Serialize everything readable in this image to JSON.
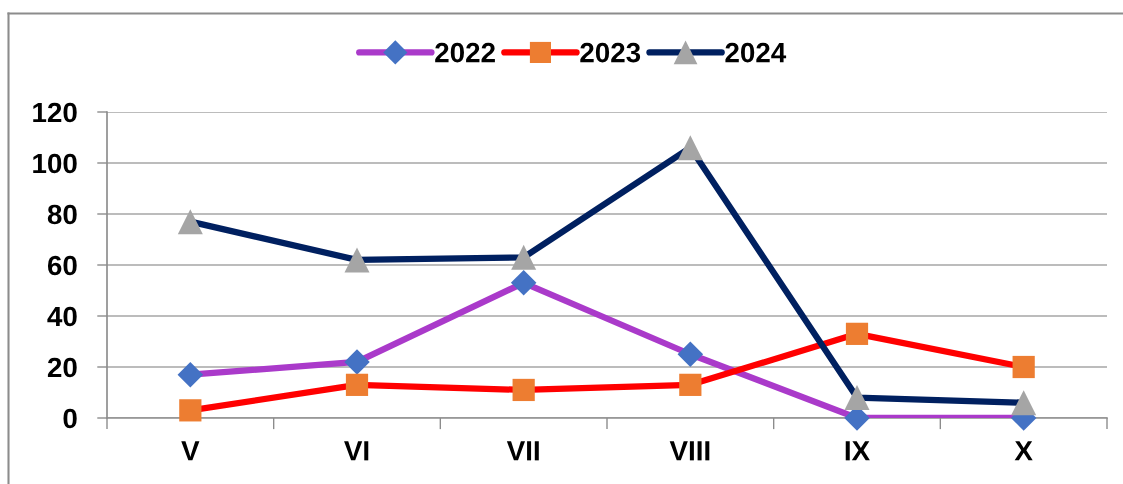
{
  "chart_data": {
    "type": "line",
    "categories": [
      "V",
      "VI",
      "VII",
      "VIII",
      "IX",
      "X"
    ],
    "ylim": [
      0,
      120
    ],
    "yticks": [
      0,
      20,
      40,
      60,
      80,
      100,
      120
    ],
    "grid": "y",
    "legend": "top",
    "line_style": "solid",
    "series": [
      {
        "name": "2022",
        "color": "#aa3aca",
        "marker": "diamond",
        "colors": [
          "#4472c4",
          "#4472c4",
          "#4472c4",
          "#4472c4",
          "#4472c4",
          "#4472c4"
        ],
        "values": [
          17,
          22,
          53,
          25,
          0,
          0
        ]
      },
      {
        "name": "2023",
        "color": "#ff0000",
        "marker": "square",
        "colors": [
          "#ed7d31",
          "#ed7d31",
          "#ed7d31",
          "#ed7d31",
          "#ed7d31",
          "#ed7d31"
        ],
        "values": [
          3,
          13,
          11,
          13,
          33,
          20
        ]
      },
      {
        "name": "2024",
        "color": "#002060",
        "marker": "triangle",
        "colors": [
          "#a5a5a5",
          "#a5a5a5",
          "#a5a5a5",
          "#a5a5a5",
          "#a5a5a5",
          "#a5a5a5"
        ],
        "values": [
          77,
          62,
          63,
          106,
          8,
          6
        ]
      }
    ]
  }
}
